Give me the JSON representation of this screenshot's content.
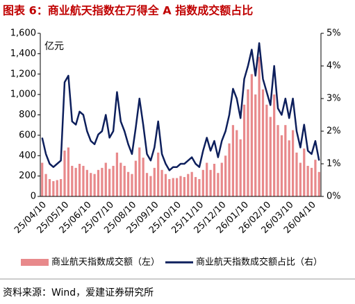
{
  "chart_data": {
    "type": "bar-line",
    "title": "图表 6：商业航天指数在万得全 A 指数成交额占比",
    "y_unit": "亿元",
    "source": "资料来源：Wind，爱建证券研究所",
    "categories": [
      "25/04/10",
      null,
      null,
      null,
      null,
      null,
      "25/05/10",
      null,
      null,
      null,
      null,
      null,
      "25/06/10",
      null,
      null,
      null,
      null,
      null,
      "25/07/10",
      null,
      null,
      null,
      null,
      null,
      "25/08/10",
      null,
      null,
      null,
      null,
      null,
      "25/09/10",
      null,
      null,
      null,
      null,
      null,
      "25/10/10",
      null,
      null,
      null,
      null,
      null,
      "25/11/10",
      null,
      null,
      null,
      null,
      null,
      "25/12/10",
      null,
      null,
      null,
      null,
      null,
      "26/01/10",
      null,
      null,
      null,
      null,
      null,
      "26/02/10",
      null,
      null,
      null,
      null,
      null,
      "26/03/10",
      null,
      null,
      null,
      null,
      null,
      "26/04/10",
      null,
      null
    ],
    "series": [
      {
        "name": "商业航天指数成交额（左）",
        "type": "bar",
        "color": "#e8898b",
        "values": [
          330,
          220,
          170,
          150,
          160,
          170,
          450,
          480,
          300,
          280,
          320,
          300,
          260,
          230,
          220,
          260,
          280,
          330,
          270,
          300,
          430,
          330,
          300,
          240,
          220,
          350,
          480,
          380,
          230,
          200,
          280,
          430,
          260,
          220,
          170,
          180,
          180,
          200,
          190,
          220,
          240,
          190,
          170,
          260,
          330,
          260,
          320,
          230,
          330,
          400,
          520,
          700,
          650,
          560,
          900,
          1050,
          1200,
          1000,
          1370,
          1050,
          900,
          780,
          1000,
          700,
          600,
          700,
          550,
          650,
          430,
          330,
          470,
          300,
          280,
          360,
          240
        ]
      },
      {
        "name": "商业航天指数成交额占比（右）",
        "type": "line",
        "axis": "y2",
        "color": "#0d1f5c",
        "values": [
          1.8,
          1.3,
          1.0,
          0.9,
          1.0,
          1.1,
          3.5,
          3.7,
          2.3,
          2.2,
          2.6,
          2.5,
          2.0,
          1.7,
          1.6,
          1.9,
          2.0,
          2.5,
          1.8,
          2.0,
          3.2,
          2.3,
          2.0,
          1.6,
          1.3,
          2.1,
          3.0,
          2.2,
          1.3,
          1.1,
          1.5,
          2.3,
          1.3,
          1.0,
          0.8,
          0.9,
          0.9,
          1.0,
          1.0,
          1.1,
          1.2,
          1.0,
          0.9,
          1.4,
          1.8,
          1.4,
          1.7,
          1.2,
          1.7,
          2.0,
          2.5,
          3.3,
          3.0,
          2.4,
          3.6,
          4.0,
          4.5,
          3.7,
          4.7,
          3.6,
          3.2,
          2.8,
          4.0,
          2.7,
          2.5,
          3.0,
          2.4,
          3.0,
          2.0,
          1.5,
          2.2,
          1.4,
          1.3,
          1.7,
          1.1
        ]
      }
    ],
    "ylim": [
      0,
      1600
    ],
    "yticks": [
      0,
      200,
      400,
      600,
      800,
      {
        "value": 1000,
        "label": "1,000"
      },
      {
        "value": 1200,
        "label": "1,200"
      },
      {
        "value": 1400,
        "label": "1,400"
      },
      {
        "value": 1600,
        "label": "1,600"
      }
    ],
    "y2lim": [
      0,
      5
    ],
    "y2ticks": [
      {
        "value": 0,
        "label": "0%"
      },
      {
        "value": 1,
        "label": "1%"
      },
      {
        "value": 2,
        "label": "2%"
      },
      {
        "value": 3,
        "label": "3%"
      },
      {
        "value": 4,
        "label": "4%"
      },
      {
        "value": 5,
        "label": "5%"
      }
    ]
  }
}
